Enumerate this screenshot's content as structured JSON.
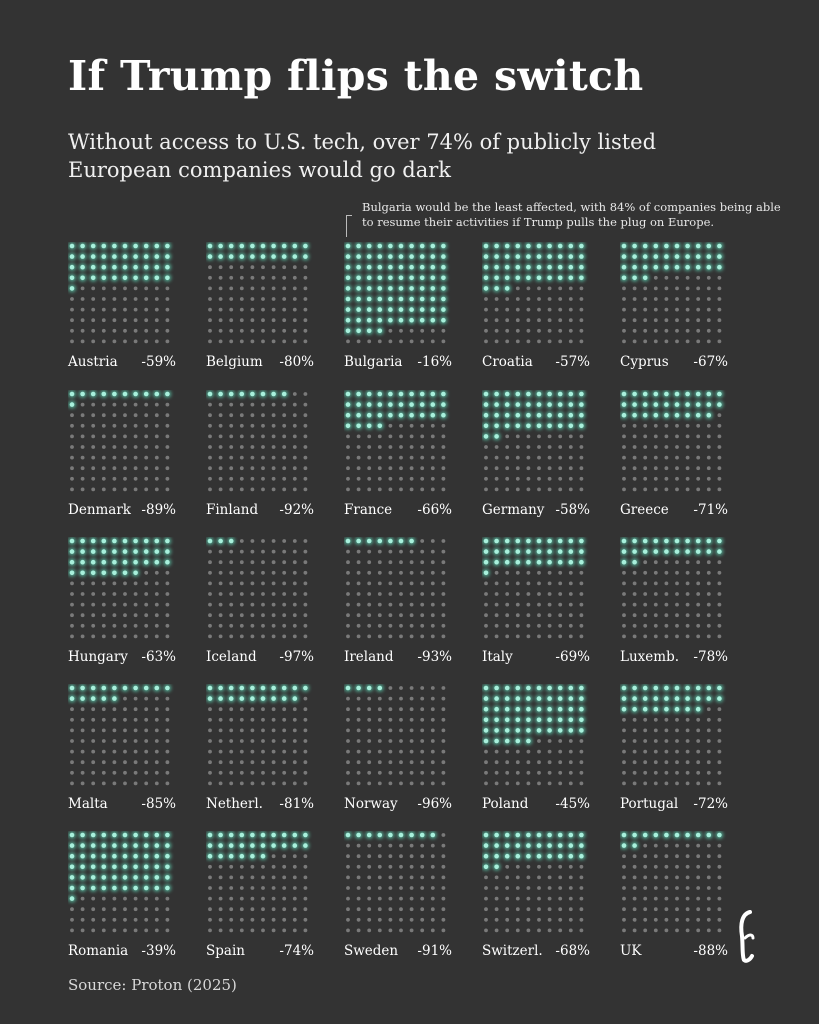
{
  "title": "If Trump flips the switch",
  "subtitle": "Without access to U.S. tech, over 74% of publicly listed European companies would go dark",
  "annotation": "Bulgaria would be the least affected, with 84% of companies being able to resume their activities if Trump pulls the plug on Europe.",
  "source": "Source: Proton (2025)",
  "colors": {
    "background": "#333333",
    "lit_dot": "#a8f0dc",
    "glow": "#5fd6b6",
    "dark_dot": "#7a7a7a"
  },
  "chart_data": {
    "type": "waffle",
    "grid": "10x10 dots per country",
    "countries": [
      {
        "name": "Austria",
        "label": "-59%",
        "value": -59
      },
      {
        "name": "Belgium",
        "label": "-80%",
        "value": -80
      },
      {
        "name": "Bulgaria",
        "label": "-16%",
        "value": -16
      },
      {
        "name": "Croatia",
        "label": "-57%",
        "value": -57
      },
      {
        "name": "Cyprus",
        "label": "-67%",
        "value": -67
      },
      {
        "name": "Denmark",
        "label": "-89%",
        "value": -89
      },
      {
        "name": "Finland",
        "label": "-92%",
        "value": -92
      },
      {
        "name": "France",
        "label": "-66%",
        "value": -66
      },
      {
        "name": "Germany",
        "label": "-58%",
        "value": -58
      },
      {
        "name": "Greece",
        "label": "-71%",
        "value": -71
      },
      {
        "name": "Hungary",
        "label": "-63%",
        "value": -63
      },
      {
        "name": "Iceland",
        "label": "-97%",
        "value": -97
      },
      {
        "name": "Ireland",
        "label": "-93%",
        "value": -93
      },
      {
        "name": "Italy",
        "label": "-69%",
        "value": -69
      },
      {
        "name": "Luxemb.",
        "label": "-78%",
        "value": -78
      },
      {
        "name": "Malta",
        "label": "-85%",
        "value": -85
      },
      {
        "name": "Netherl.",
        "label": "-81%",
        "value": -81
      },
      {
        "name": "Norway",
        "label": "-96%",
        "value": -96
      },
      {
        "name": "Poland",
        "label": "-45%",
        "value": -45
      },
      {
        "name": "Portugal",
        "label": "-72%",
        "value": -72
      },
      {
        "name": "Romania",
        "label": "-39%",
        "value": -39
      },
      {
        "name": "Spain",
        "label": "-74%",
        "value": -74
      },
      {
        "name": "Sweden",
        "label": "-91%",
        "value": -91
      },
      {
        "name": "Switzerl.",
        "label": "-68%",
        "value": -68
      },
      {
        "name": "UK",
        "label": "-88%",
        "value": -88
      }
    ]
  }
}
